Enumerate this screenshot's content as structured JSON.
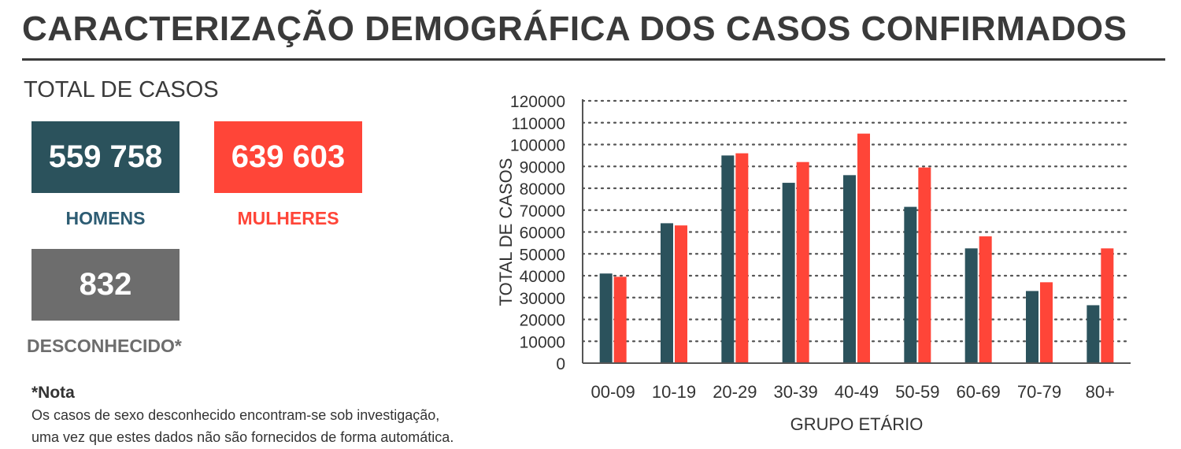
{
  "title": "CARACTERIZAÇÃO DEMOGRÁFICA DOS CASOS CONFIRMADOS",
  "total_label": "TOTAL DE CASOS",
  "kpis": {
    "men": {
      "value": "559 758",
      "label": "HOMENS",
      "color": "#2b525c",
      "label_color": "#2d5c73"
    },
    "women": {
      "value": "639 603",
      "label": "MULHERES",
      "color": "#ff4538",
      "label_color": "#ff4538"
    },
    "unknown": {
      "value": "832",
      "label": "DESCONHECIDO*",
      "color": "#6d6d6d",
      "label_color": "#6d6d6d"
    }
  },
  "note": {
    "title": "*Nota",
    "lines": [
      "Os casos de sexo desconhecido encontram-se sob investigação,",
      "uma vez que estes dados não são fornecidos de forma automática."
    ]
  },
  "chart_data": {
    "type": "bar",
    "categories": [
      "00-09",
      "10-19",
      "20-29",
      "30-39",
      "40-49",
      "50-59",
      "60-69",
      "70-79",
      "80+"
    ],
    "series": [
      {
        "values": [
          41000,
          64000,
          95000,
          82500,
          86000,
          71500,
          52500,
          33000,
          26500
        ],
        "color": "#2b525c"
      },
      {
        "values": [
          39500,
          63000,
          96000,
          92000,
          105000,
          89500,
          58000,
          37000,
          52500
        ],
        "color": "#ff4538"
      }
    ],
    "xlabel": "GRUPO ETÁRIO",
    "ylabel": "TOTAL DE CASOS",
    "ylim": [
      0,
      120000
    ],
    "yticks": [
      0,
      10000,
      20000,
      30000,
      40000,
      50000,
      60000,
      70000,
      80000,
      90000,
      100000,
      110000,
      120000
    ],
    "grid": true,
    "legend": "none"
  }
}
